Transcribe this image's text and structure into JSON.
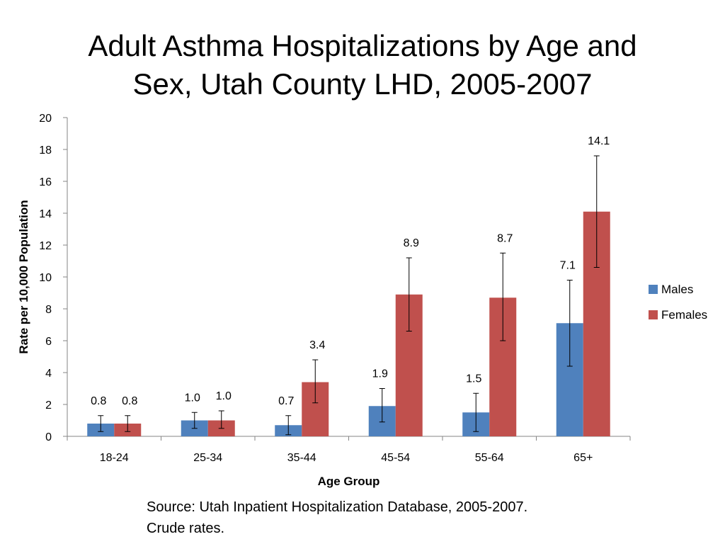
{
  "title_lines": [
    "Adult Asthma Hospitalizations by Age and",
    "Sex, Utah County LHD, 2005-2007"
  ],
  "source_lines": [
    "Source: Utah Inpatient Hospitalization Database, 2005-2007.",
    "Crude rates."
  ],
  "chart_data": {
    "type": "bar",
    "title": "Adult Asthma Hospitalizations by Age and Sex, Utah County LHD, 2005-2007",
    "xlabel": "Age Group",
    "ylabel": "Rate per 10,000 Population",
    "ylim": [
      0,
      20
    ],
    "yticks": [
      0,
      2,
      4,
      6,
      8,
      10,
      12,
      14,
      16,
      18,
      20
    ],
    "grid": false,
    "legend_position": "right",
    "categories": [
      "18-24",
      "25-34",
      "35-44",
      "45-54",
      "55-64",
      "65+"
    ],
    "series": [
      {
        "name": "Males",
        "color": "#4f81bd",
        "values": [
          0.8,
          1.0,
          0.7,
          1.9,
          1.5,
          7.1
        ],
        "labels": [
          "0.8",
          "1.0",
          "0.7",
          "1.9",
          "1.5",
          "7.1"
        ],
        "error_low": [
          0.3,
          0.5,
          0.1,
          0.9,
          0.3,
          4.4
        ],
        "error_high": [
          1.3,
          1.5,
          1.3,
          3.0,
          2.7,
          9.8
        ]
      },
      {
        "name": "Females",
        "color": "#c0504d",
        "values": [
          0.8,
          1.0,
          3.4,
          8.9,
          8.7,
          14.1
        ],
        "labels": [
          "0.8",
          "1.0",
          "3.4",
          "8.9",
          "8.7",
          "14.1"
        ],
        "error_low": [
          0.3,
          0.5,
          2.1,
          6.6,
          6.0,
          10.6
        ],
        "error_high": [
          1.3,
          1.6,
          4.8,
          11.2,
          11.5,
          17.6
        ]
      }
    ]
  }
}
